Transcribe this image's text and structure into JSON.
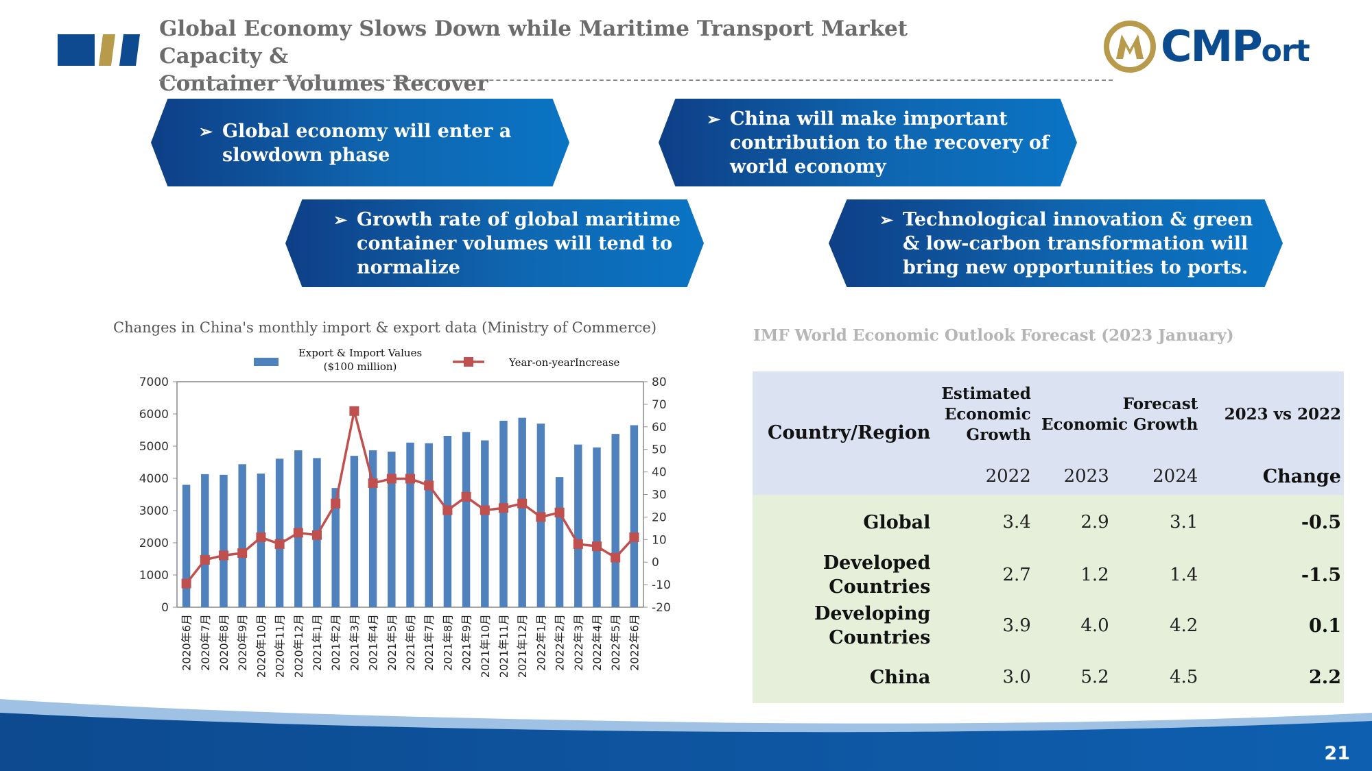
{
  "header": {
    "title_line1": "Global Economy Slows Down while Maritime Transport Market Capacity &",
    "title_line2": "Container Volumes Recover",
    "brand_main": "CMP",
    "brand_small": "ort",
    "colors": {
      "title": "#6b6b6b",
      "brand": "#0a4a8f",
      "gold": "#b89a4b"
    }
  },
  "banners": [
    {
      "lines": [
        "Global economy will enter a",
        "slowdown phase"
      ]
    },
    {
      "lines": [
        "China will make important",
        "contribution to the recovery of",
        "world economy"
      ]
    },
    {
      "lines": [
        "Growth rate of global maritime",
        "container volumes will tend to",
        "normalize"
      ]
    },
    {
      "lines": [
        "Technological innovation & green",
        "& low-carbon transformation will",
        "bring new opportunities to ports."
      ]
    }
  ],
  "banner_bullet": "➢",
  "chart_data": {
    "type": "bar",
    "title": "Changes in China's monthly import & export data (Ministry of Commerce)",
    "categories": [
      "2020年6月",
      "2020年7月",
      "2020年8月",
      "2020年9月",
      "2020年10月",
      "2020年11月",
      "2020年12月",
      "2021年1月",
      "2021年2月",
      "2021年3月",
      "2021年4月",
      "2021年5月",
      "2021年6月",
      "2021年7月",
      "2021年8月",
      "2021年9月",
      "2021年10月",
      "2021年11月",
      "2021年12月",
      "2022年1月",
      "2022年2月",
      "2022年3月",
      "2022年4月",
      "2022年5月",
      "2022年6月"
    ],
    "series": [
      {
        "name": "Export & Import Values ($100 million)",
        "legend_line1": "Export & Import Values",
        "legend_line2": "($100 million)",
        "type": "bar",
        "axis": "left",
        "color": "#4f81bd",
        "values": [
          3800,
          4130,
          4110,
          4440,
          4150,
          4610,
          4870,
          4630,
          3700,
          4700,
          4870,
          4830,
          5110,
          5090,
          5320,
          5440,
          5180,
          5790,
          5880,
          5700,
          4040,
          5050,
          4960,
          5380,
          5650
        ]
      },
      {
        "name": "Year-on-yearIncrease",
        "type": "line",
        "axis": "right",
        "color": "#c0504d",
        "values": [
          -9.5,
          1,
          3,
          4,
          11,
          8,
          13,
          12,
          26,
          67,
          35,
          37,
          37,
          34,
          23,
          29,
          23,
          24,
          26,
          20,
          22,
          8,
          7,
          2,
          11
        ]
      }
    ],
    "y_left": {
      "min": 0,
      "max": 7000,
      "ticks": [
        "0",
        "1000",
        "2000",
        "3000",
        "4000",
        "5000",
        "6000",
        "7000"
      ]
    },
    "y_right": {
      "min": -20,
      "max": 80,
      "ticks": [
        "-20",
        "-10",
        "0",
        "10",
        "20",
        "30",
        "40",
        "50",
        "60",
        "70",
        "80"
      ]
    },
    "grid": false,
    "legend_position": "top"
  },
  "table": {
    "title": "IMF World Economic Outlook Forecast (2023 January)",
    "header": {
      "country": "Country/Region",
      "estimated": "Estimated Economic Growth",
      "forecast": "Forecast Economic Growth",
      "vs": "2023 vs 2022",
      "y2022": "2022",
      "y2023": "2023",
      "y2024": "2024",
      "change": "Change"
    },
    "rows": [
      {
        "region": "Global",
        "v2022": "3.4",
        "v2023": "2.9",
        "v2024": "3.1",
        "change": "-0.5"
      },
      {
        "region": "Developed Countries",
        "v2022": "2.7",
        "v2023": "1.2",
        "v2024": "1.4",
        "change": "-1.5"
      },
      {
        "region": "Developing Countries",
        "v2022": "3.9",
        "v2023": "4.0",
        "v2024": "4.2",
        "change": "0.1"
      },
      {
        "region": "China",
        "v2022": "3.0",
        "v2023": "5.2",
        "v2024": "4.5",
        "change": "2.2"
      }
    ]
  },
  "page_number": "21"
}
